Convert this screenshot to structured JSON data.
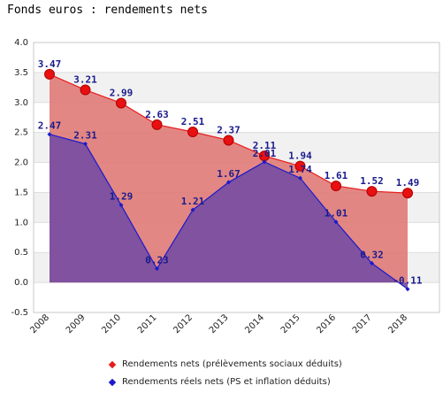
{
  "chart_data": {
    "type": "area",
    "title": "Fonds euros : rendements nets",
    "x": [
      "2008",
      "2009",
      "2010",
      "2011",
      "2012",
      "2013",
      "2014",
      "2015",
      "2016",
      "2017",
      "2018"
    ],
    "ylim": [
      -0.5,
      4.0
    ],
    "yticks": [
      "-0.5",
      "0.0",
      "0.5",
      "1.0",
      "1.5",
      "2.0",
      "2.5",
      "3.0",
      "3.5",
      "4.0"
    ],
    "grid": true,
    "legend_position": "bottom",
    "series": [
      {
        "name": "Rendements nets (prélèvements sociaux déduits)",
        "values": [
          3.47,
          3.21,
          2.99,
          2.63,
          2.51,
          2.37,
          2.11,
          1.94,
          1.61,
          1.52,
          1.49
        ],
        "labels": [
          "3.47",
          "3.21",
          "2.99",
          "2.63",
          "2.51",
          "2.37",
          "2.11",
          "1.94",
          "1.61",
          "1.52",
          "1.49"
        ],
        "color": "#e81c1c",
        "fill": "#e07a77"
      },
      {
        "name": "Rendements réels nets (PS et inflation déduits)",
        "values": [
          2.47,
          2.31,
          1.29,
          0.23,
          1.21,
          1.67,
          2.01,
          1.74,
          1.01,
          0.32,
          -0.11
        ],
        "labels": [
          "2.47",
          "2.31",
          "1.29",
          "0.23",
          "1.21",
          "1.67",
          "2.01",
          "1.74",
          "1.01",
          "0.32",
          "-0.11"
        ],
        "color": "#1a1acc",
        "fill": "#7a4fa0"
      }
    ]
  }
}
